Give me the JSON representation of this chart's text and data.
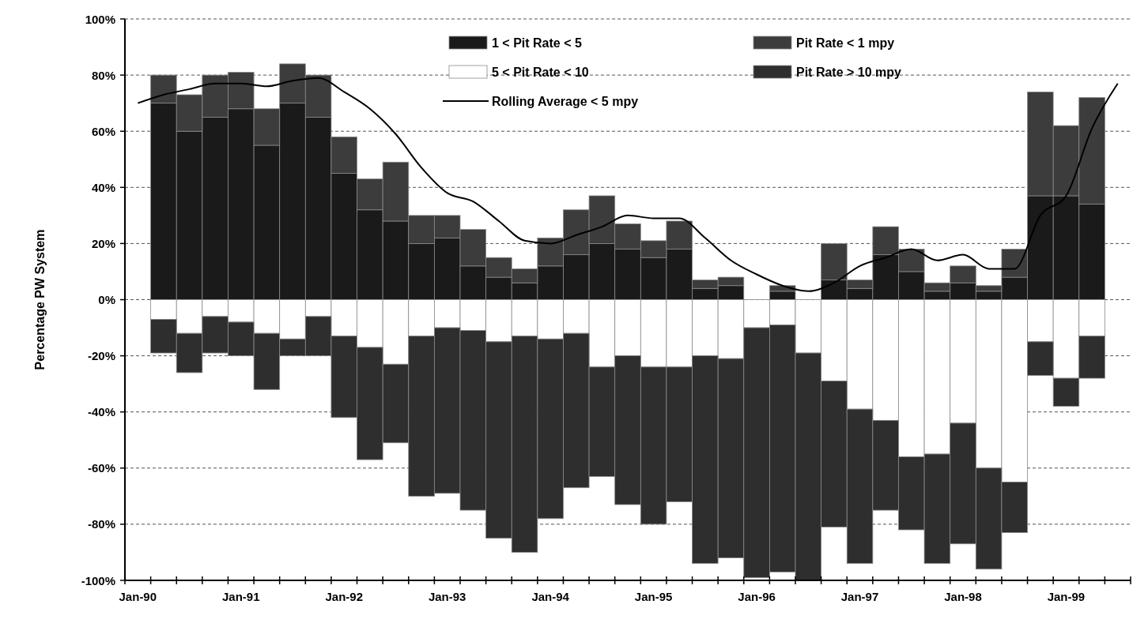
{
  "chart_data": {
    "type": "bar",
    "stacked": true,
    "ylabel": "Percentage PW System",
    "categories": [
      "Jan-90",
      null,
      null,
      null,
      "Jan-91",
      null,
      null,
      null,
      "Jan-92",
      null,
      null,
      null,
      "Jan-93",
      null,
      null,
      null,
      "Jan-94",
      null,
      null,
      null,
      "Jan-95",
      null,
      null,
      null,
      "Jan-96",
      null,
      null,
      null,
      "Jan-97",
      null,
      null,
      null,
      "Jan-98",
      null,
      null,
      null,
      "Jan-99",
      null,
      null
    ],
    "series": [
      {
        "name": "1 < Pit Rate < 5",
        "color": "#1a1a1a",
        "values": [
          null,
          70,
          60,
          65,
          68,
          55,
          70,
          65,
          45,
          32,
          28,
          20,
          22,
          12,
          8,
          6,
          12,
          16,
          20,
          18,
          15,
          18,
          4,
          5,
          null,
          3,
          null,
          7,
          4,
          16,
          10,
          3,
          6,
          3,
          8,
          37,
          37,
          34,
          null
        ]
      },
      {
        "name": "Pit Rate < 1 mpy",
        "color": "#3c3c3c",
        "values": [
          null,
          10,
          13,
          15,
          13,
          13,
          14,
          15,
          13,
          11,
          21,
          10,
          8,
          13,
          7,
          5,
          10,
          16,
          17,
          9,
          6,
          10,
          3,
          3,
          null,
          2,
          null,
          13,
          3,
          10,
          8,
          3,
          6,
          2,
          10,
          37,
          25,
          38,
          null
        ]
      },
      {
        "name": "5 < Pit Rate < 10",
        "color": "#ffffff",
        "values": [
          null,
          -7,
          -12,
          -6,
          -8,
          -12,
          -14,
          -6,
          -13,
          -17,
          -23,
          -13,
          -10,
          -11,
          -15,
          -13,
          -14,
          -12,
          -24,
          -20,
          -24,
          -24,
          -20,
          -21,
          -10,
          -9,
          -19,
          -29,
          -39,
          -43,
          -56,
          -55,
          -44,
          -60,
          -65,
          -15,
          -28,
          -13,
          null
        ]
      },
      {
        "name": "Pit Rate > 10 mpy",
        "color": "#2e2e2e",
        "values": [
          null,
          -12,
          -14,
          -13,
          -12,
          -20,
          -6,
          -14,
          -29,
          -40,
          -28,
          -57,
          -59,
          -64,
          -70,
          -77,
          -64,
          -55,
          -39,
          -53,
          -56,
          -48,
          -74,
          -71,
          -89,
          -88,
          -81,
          -52,
          -55,
          -32,
          -26,
          -39,
          -43,
          -36,
          -18,
          -12,
          -10,
          -15,
          null
        ]
      },
      {
        "name": "Rolling Average < 5 mpy",
        "type": "line",
        "color": "#000000",
        "values": [
          70,
          73,
          75,
          77,
          77,
          76,
          78,
          79,
          74,
          68,
          59,
          47,
          38,
          35,
          28,
          21,
          20,
          23,
          26,
          30,
          29,
          29,
          22,
          14,
          9,
          5,
          3,
          6,
          12,
          15,
          18,
          14,
          16,
          11,
          11,
          30,
          37,
          61,
          77
        ]
      }
    ],
    "ylim": [
      -100,
      100
    ],
    "yticks": [
      {
        "value": -100,
        "label": "-100%"
      },
      {
        "value": -80,
        "label": "-80%"
      },
      {
        "value": -60,
        "label": "-60%"
      },
      {
        "value": -40,
        "label": "-40%"
      },
      {
        "value": -20,
        "label": "-20%"
      },
      {
        "value": 0,
        "label": "0%"
      },
      {
        "value": 20,
        "label": "20%"
      },
      {
        "value": 40,
        "label": "40%"
      },
      {
        "value": 60,
        "label": "60%"
      },
      {
        "value": 80,
        "label": "80%"
      },
      {
        "value": 100,
        "label": "100%"
      }
    ],
    "grid": "y",
    "legend": "top"
  }
}
